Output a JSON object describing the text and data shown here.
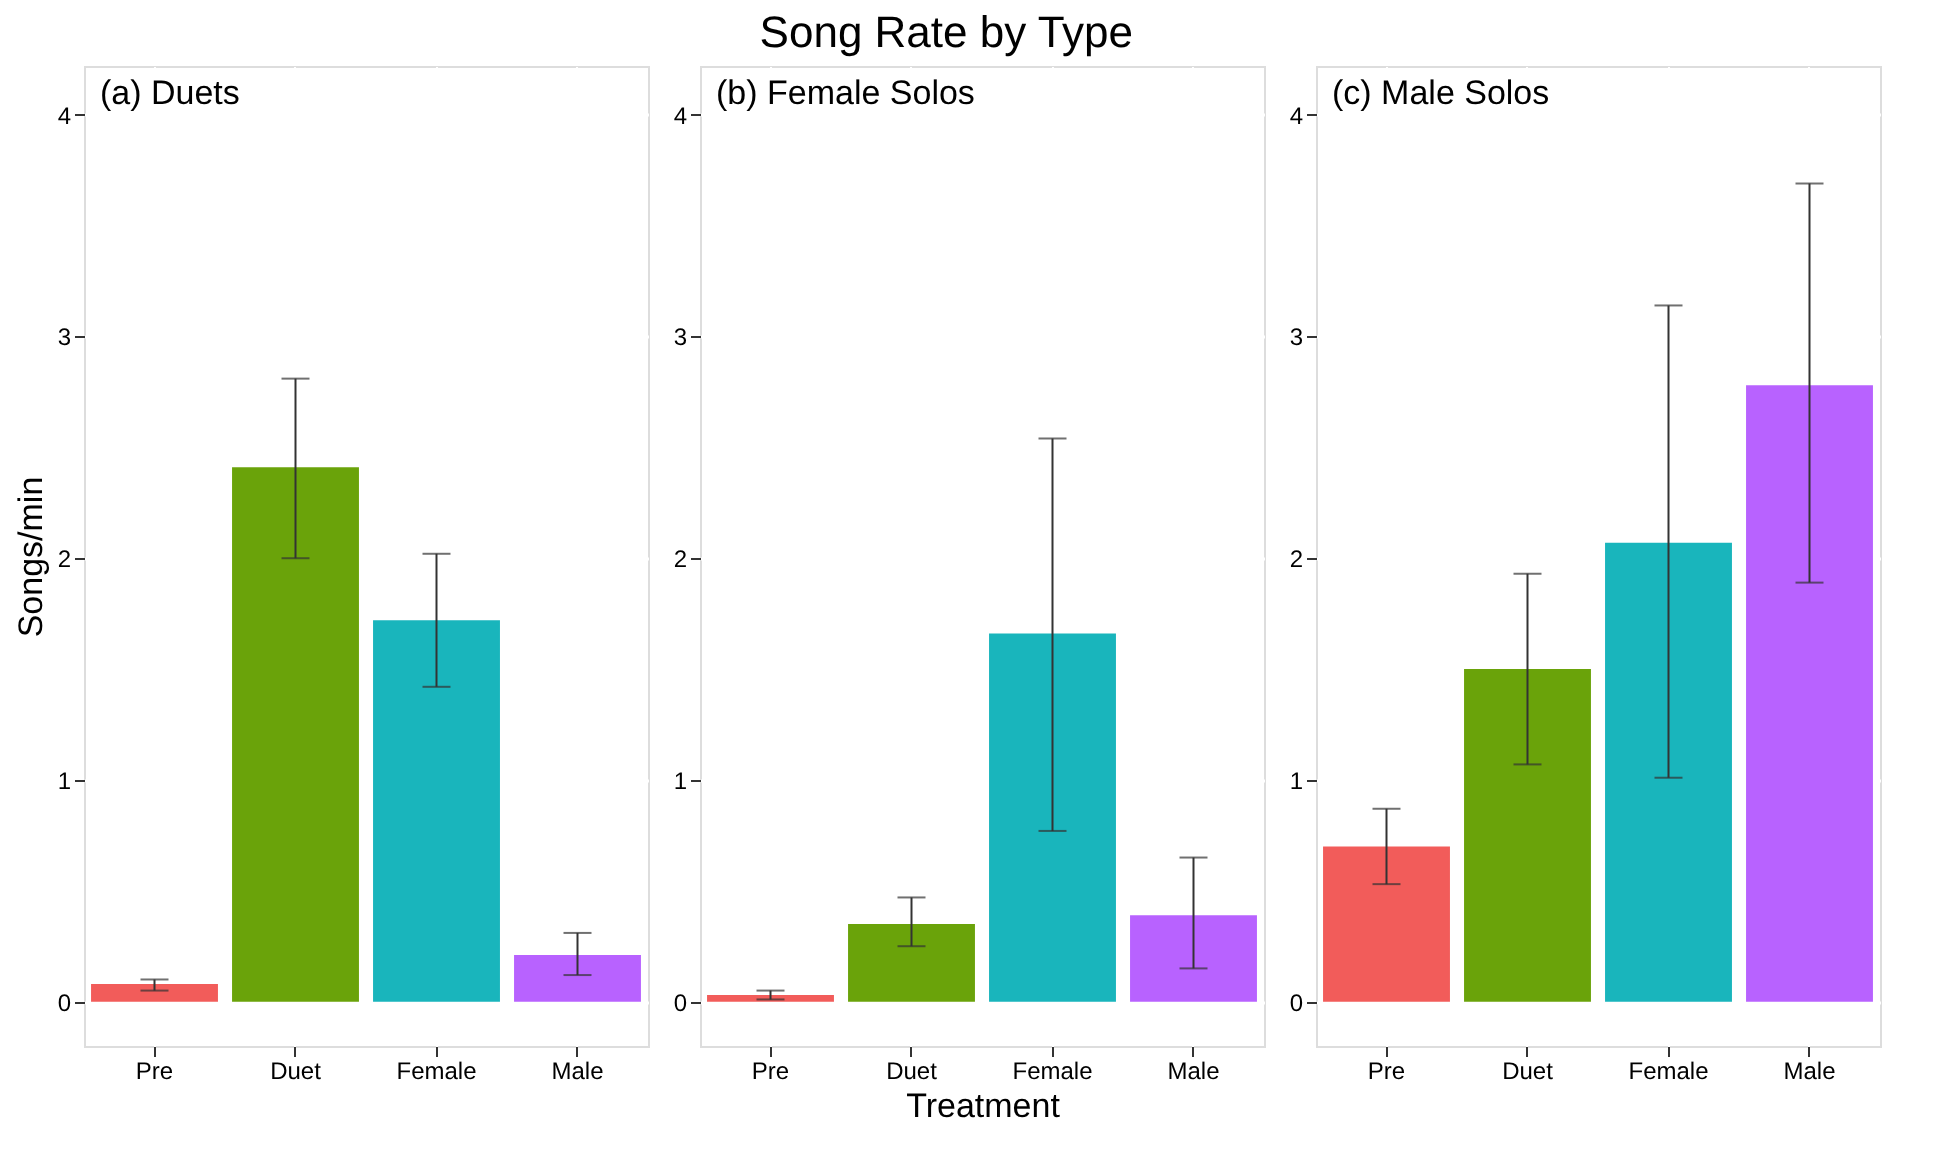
{
  "chart_data": [
    {
      "type": "bar",
      "annotations": [
        "(a) Duets"
      ],
      "ylabel": "Songs/min",
      "categories": [
        "Pre",
        "Duet",
        "Female",
        "Male"
      ],
      "values": [
        0.08,
        2.41,
        1.72,
        0.21
      ],
      "colors": [
        "#f25c5a",
        "#6aa30a",
        "#19b5bc",
        "#b862ff"
      ],
      "errors": [
        [
          0.05,
          0.1
        ],
        [
          2.0,
          2.81
        ],
        [
          1.42,
          2.02
        ],
        [
          0.12,
          0.31
        ]
      ],
      "ylim": [
        -0.2,
        4.22
      ],
      "yticks": [
        0,
        1,
        2,
        3,
        4
      ],
      "grid": true
    },
    {
      "type": "bar",
      "title": "Song Rate by Type",
      "xlabel": "Treatment",
      "annotations": [
        "(b) Female Solos"
      ],
      "categories": [
        "Pre",
        "Duet",
        "Female",
        "Male"
      ],
      "values": [
        0.03,
        0.35,
        1.66,
        0.39
      ],
      "colors": [
        "#f25c5a",
        "#6aa30a",
        "#19b5bc",
        "#b862ff"
      ],
      "errors": [
        [
          0.01,
          0.05
        ],
        [
          0.25,
          0.47
        ],
        [
          0.77,
          2.54
        ],
        [
          0.15,
          0.65
        ]
      ],
      "ylim": [
        -0.2,
        4.22
      ],
      "yticks": [
        0,
        1,
        2,
        3,
        4
      ],
      "grid": true
    },
    {
      "type": "bar",
      "annotations": [
        "(c) Male Solos"
      ],
      "categories": [
        "Pre",
        "Duet",
        "Female",
        "Male"
      ],
      "values": [
        0.7,
        1.5,
        2.07,
        2.78
      ],
      "colors": [
        "#f25c5a",
        "#6aa30a",
        "#19b5bc",
        "#b862ff"
      ],
      "errors": [
        [
          0.53,
          0.87
        ],
        [
          1.07,
          1.93
        ],
        [
          1.01,
          3.14
        ],
        [
          1.89,
          3.69
        ]
      ],
      "ylim": [
        -0.2,
        4.22
      ],
      "yticks": [
        0,
        1,
        2,
        3,
        4
      ],
      "grid": true
    }
  ]
}
